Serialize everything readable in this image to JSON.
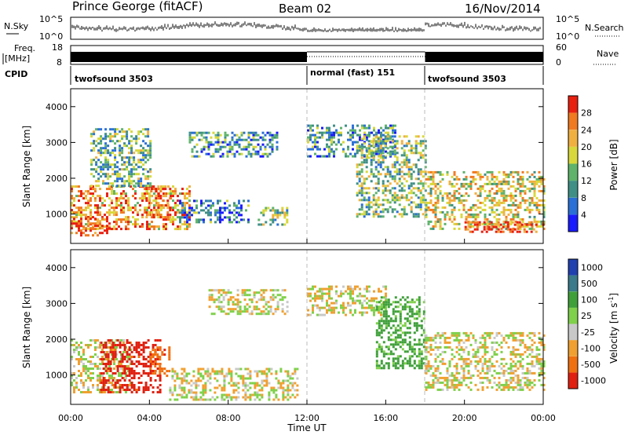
{
  "header": {
    "station": "Prince George (fitACF)",
    "beam": "Beam 02",
    "date": "16/Nov/2014"
  },
  "strip_labels": {
    "nsky": "N.Sky",
    "nsearch": "N.Search",
    "freq_line1": "Freq.",
    "freq_line2": "[MHz]",
    "nave": "Nave",
    "cpid": "CPID",
    "nsky_ticks": [
      "10^5",
      "10^0"
    ],
    "freq_ticks": [
      "18",
      "8"
    ],
    "nave_ticks": [
      "60",
      "0"
    ]
  },
  "cpid_segments": [
    {
      "label": "twofsound 3503",
      "start_hour": 0,
      "end_hour": 12
    },
    {
      "label": "normal (fast) 151",
      "start_hour": 12,
      "end_hour": 18
    },
    {
      "label": "twofsound 3503",
      "start_hour": 18,
      "end_hour": 24
    }
  ],
  "time_axis": {
    "title": "Time UT",
    "ticks": [
      "00:00",
      "04:00",
      "08:00",
      "12:00",
      "16:00",
      "20:00",
      "00:00"
    ],
    "range_hours": [
      0,
      24
    ]
  },
  "range_axis": {
    "title": "Slant Range [km]",
    "ticks": [
      "1000",
      "2000",
      "3000",
      "4000"
    ],
    "range_km": [
      180,
      4500
    ]
  },
  "power_colorbar": {
    "title": "Power [dB]",
    "ticks": [
      "4",
      "8",
      "12",
      "16",
      "20",
      "24",
      "28"
    ],
    "colors": [
      "#1a1aff",
      "#2a6fd6",
      "#3f8f86",
      "#5fb36a",
      "#d8d83a",
      "#f0b040",
      "#f07a20",
      "#e82010"
    ]
  },
  "velocity_colorbar": {
    "title": "Velocity [m s",
    "title_sup": "-1",
    "title_close": "]",
    "ticks": [
      "1000",
      "500",
      "100",
      "25",
      "-25",
      "-100",
      "-500",
      "-1000"
    ],
    "colors": [
      "#2040b0",
      "#3a7a8a",
      "#3fa03a",
      "#7fd04a",
      "#c8c8c8",
      "#f0a030",
      "#f07010",
      "#e02010"
    ]
  },
  "chart_data": [
    {
      "type": "heatmap",
      "title": "Power [dB]",
      "xlabel": "Time UT",
      "ylabel": "Slant Range [km]",
      "xlim": [
        0,
        24
      ],
      "ylim": [
        180,
        4500
      ],
      "clim": [
        0,
        30
      ],
      "regions": [
        {
          "t": [
            0.0,
            6.0
          ],
          "r": [
            600,
            1800
          ],
          "value": 22
        },
        {
          "t": [
            0.0,
            2.0
          ],
          "r": [
            400,
            900
          ],
          "value": 28
        },
        {
          "t": [
            3.8,
            5.0
          ],
          "r": [
            900,
            1800
          ],
          "value": 24
        },
        {
          "t": [
            1.0,
            4.0
          ],
          "r": [
            1800,
            3400
          ],
          "value": 12
        },
        {
          "t": [
            5.5,
            9.0
          ],
          "r": [
            800,
            1400
          ],
          "value": 8
        },
        {
          "t": [
            6.0,
            10.5
          ],
          "r": [
            2600,
            3300
          ],
          "value": 10
        },
        {
          "t": [
            9.5,
            11.0
          ],
          "r": [
            700,
            1200
          ],
          "value": 14
        },
        {
          "t": [
            12.0,
            16.5
          ],
          "r": [
            2600,
            3500
          ],
          "value": 10
        },
        {
          "t": [
            14.5,
            18.0
          ],
          "r": [
            900,
            3200
          ],
          "value": 14
        },
        {
          "t": [
            18.0,
            24.0
          ],
          "r": [
            600,
            2200
          ],
          "value": 18
        },
        {
          "t": [
            20.0,
            24.0
          ],
          "r": [
            500,
            800
          ],
          "value": 28
        }
      ]
    },
    {
      "type": "heatmap",
      "title": "Velocity [m s-1]",
      "xlabel": "Time UT",
      "ylabel": "Slant Range [km]",
      "xlim": [
        0,
        24
      ],
      "ylim": [
        180,
        4500
      ],
      "clim": [
        -1000,
        1000
      ],
      "regions": [
        {
          "t": [
            0.0,
            3.0
          ],
          "r": [
            500,
            2000
          ],
          "value": 0
        },
        {
          "t": [
            1.5,
            4.5
          ],
          "r": [
            500,
            2000
          ],
          "value": -300
        },
        {
          "t": [
            4.0,
            5.0
          ],
          "r": [
            1000,
            1800
          ],
          "value": -200
        },
        {
          "t": [
            5.0,
            11.5
          ],
          "r": [
            300,
            1200
          ],
          "value": 0
        },
        {
          "t": [
            7.0,
            11.0
          ],
          "r": [
            2700,
            3400
          ],
          "value": 0
        },
        {
          "t": [
            12.0,
            16.0
          ],
          "r": [
            2700,
            3500
          ],
          "value": 0
        },
        {
          "t": [
            15.5,
            18.0
          ],
          "r": [
            1200,
            3200
          ],
          "value": 100
        },
        {
          "t": [
            18.0,
            24.0
          ],
          "r": [
            600,
            2200
          ],
          "value": 0
        }
      ]
    }
  ]
}
